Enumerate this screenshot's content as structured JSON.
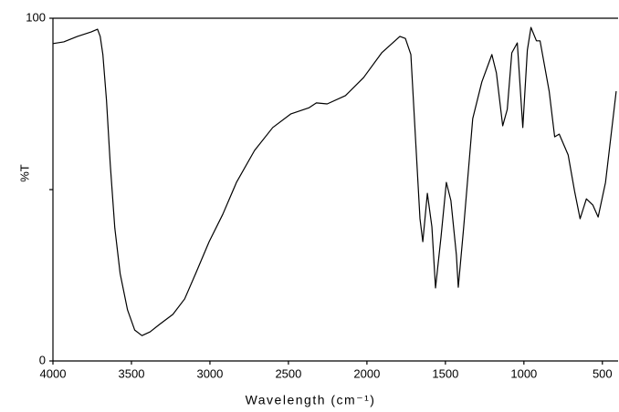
{
  "chart_data": {
    "type": "line",
    "xlabel": "Wavelength (cm⁻¹)",
    "ylabel": "%T",
    "xlim": [
      4000,
      400
    ],
    "ylim": [
      0,
      100
    ],
    "xticks": [
      4000,
      3500,
      3000,
      2500,
      2000,
      1500,
      1000,
      500
    ],
    "yticks": [
      0,
      100
    ],
    "yminorticks": [
      50
    ],
    "series": [
      {
        "color": "#000000",
        "x": [
          4000,
          3931,
          3844,
          3757,
          3716,
          3699,
          3682,
          3659,
          3635,
          3606,
          3572,
          3525,
          3479,
          3433,
          3381,
          3323,
          3236,
          3161,
          3091,
          3005,
          2918,
          2831,
          2716,
          2600,
          2484,
          2368,
          2322,
          2253,
          2137,
          2021,
          1906,
          1790,
          1755,
          1720,
          1691,
          1662,
          1644,
          1615,
          1586,
          1563,
          1528,
          1494,
          1465,
          1430,
          1418,
          1384,
          1326,
          1268,
          1204,
          1175,
          1135,
          1106,
          1077,
          1042,
          1007,
          978,
          955,
          920,
          897,
          839,
          804,
          775,
          718,
          677,
          642,
          602,
          561,
          527,
          480,
          412
        ],
        "values": [
          92.6,
          93.1,
          94.7,
          96.0,
          96.8,
          94.7,
          89.4,
          76.1,
          57.4,
          38.8,
          25.5,
          14.9,
          9.0,
          7.4,
          8.5,
          10.6,
          13.6,
          18.1,
          25.5,
          34.8,
          42.8,
          52.1,
          61.4,
          68.1,
          72.1,
          73.9,
          75.3,
          75.0,
          77.4,
          82.7,
          89.9,
          94.7,
          94.1,
          89.4,
          65.4,
          41.5,
          34.8,
          48.9,
          39.1,
          21.3,
          36.2,
          52.1,
          46.8,
          30.9,
          21.5,
          38.8,
          70.7,
          81.4,
          89.4,
          84.0,
          68.6,
          73.4,
          89.9,
          92.8,
          68.1,
          90.7,
          97.3,
          93.4,
          93.4,
          78.7,
          65.4,
          66.2,
          60.1,
          49.5,
          41.5,
          47.3,
          45.5,
          42.0,
          52.1,
          78.7
        ]
      }
    ]
  }
}
